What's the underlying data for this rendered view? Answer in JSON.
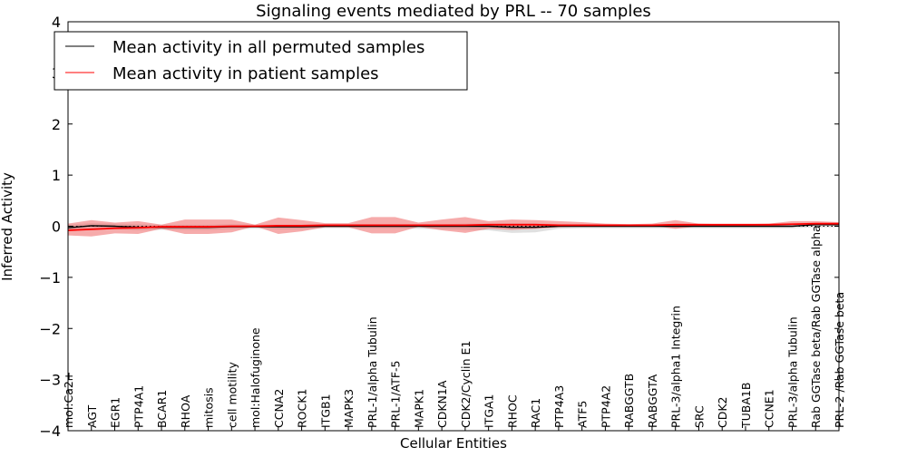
{
  "chart_data": {
    "type": "line",
    "title": "Signaling events mediated by PRL -- 70 samples",
    "xlabel": "Cellular Entities",
    "ylabel": "Inferred Activity",
    "ylim": [
      -4,
      4
    ],
    "yticks": [
      "4",
      "3",
      "2",
      "1",
      "0",
      "−1",
      "−2",
      "−3",
      "−4"
    ],
    "ytick_values": [
      4,
      3,
      2,
      1,
      0,
      -1,
      -2,
      -3,
      -4
    ],
    "legend_position": "top-left",
    "categories": [
      "mol:Ca2+",
      "AGT",
      "EGR1",
      "PTP4A1",
      "BCAR1",
      "RHOA",
      "mitosis",
      "cell motility",
      "mol:Halofuginone",
      "CCNA2",
      "ROCK1",
      "ITGB1",
      "MAPK3",
      "PRL-1/alpha Tubulin",
      "PRL-1/ATF-5",
      "MAPK1",
      "CDKN1A",
      "CDK2/Cyclin E1",
      "ITGA1",
      "RHOC",
      "RAC1",
      "PTP4A3",
      "ATF5",
      "PTP4A2",
      "RABGGTB",
      "RABGGTA",
      "PRL-3/alpha1 Integrin",
      "SRC",
      "CDK2",
      "TUBA1B",
      "CCNE1",
      "PRL-3/alpha Tubulin",
      "Rab GGTase beta/Rab GGTase alpha",
      "PRL-2 /Rab GGTase beta"
    ],
    "series": [
      {
        "name": "Mean activity in all permuted samples",
        "color": "#000000",
        "values": [
          -0.03,
          0.01,
          0,
          -0.02,
          -0.02,
          -0.02,
          -0.02,
          -0.01,
          -0.01,
          -0.01,
          -0.01,
          0,
          0,
          0,
          0,
          0,
          0,
          0,
          0,
          -0.02,
          -0.02,
          0,
          0,
          0,
          0,
          0,
          0,
          0,
          0,
          0,
          0,
          0,
          0.03,
          0.03
        ],
        "upper": [
          0.03,
          0.06,
          0.05,
          0.04,
          0.03,
          0.03,
          0.03,
          0.04,
          0.03,
          0.03,
          0.03,
          0.04,
          0.04,
          0.04,
          0.04,
          0.04,
          0.04,
          0.05,
          0.05,
          0.06,
          0.06,
          0.04,
          0.03,
          0.03,
          0.03,
          0.03,
          0.03,
          0.03,
          0.03,
          0.03,
          0.03,
          0.04,
          0.06,
          0.06
        ],
        "lower": [
          -0.09,
          -0.05,
          -0.05,
          -0.08,
          -0.07,
          -0.07,
          -0.07,
          -0.06,
          -0.05,
          -0.06,
          -0.06,
          -0.04,
          -0.04,
          -0.04,
          -0.04,
          -0.05,
          -0.06,
          -0.07,
          -0.08,
          -0.13,
          -0.12,
          -0.05,
          -0.04,
          -0.04,
          -0.04,
          -0.04,
          -0.04,
          -0.04,
          -0.04,
          -0.04,
          -0.04,
          -0.04,
          -0.02,
          -0.02
        ]
      },
      {
        "name": "Mean activity in patient samples",
        "color": "#ff0000",
        "values": [
          -0.08,
          -0.06,
          -0.04,
          -0.03,
          -0.01,
          -0.01,
          -0.01,
          0,
          0,
          0.01,
          0.01,
          0.02,
          0.02,
          0.02,
          0.02,
          0.02,
          0.02,
          0.02,
          0.03,
          0.03,
          0.03,
          0.02,
          0.02,
          0.02,
          0.02,
          0.02,
          0.03,
          0.03,
          0.03,
          0.03,
          0.03,
          0.04,
          0.05,
          0.05
        ],
        "upper": [
          0.05,
          0.12,
          0.07,
          0.1,
          0.03,
          0.13,
          0.13,
          0.13,
          0.03,
          0.17,
          0.12,
          0.06,
          0.06,
          0.18,
          0.18,
          0.07,
          0.13,
          0.18,
          0.1,
          0.13,
          0.12,
          0.1,
          0.08,
          0.05,
          0.04,
          0.05,
          0.12,
          0.05,
          0.04,
          0.04,
          0.05,
          0.1,
          0.1,
          0.08
        ],
        "lower": [
          -0.18,
          -0.2,
          -0.14,
          -0.15,
          -0.05,
          -0.15,
          -0.15,
          -0.12,
          0,
          -0.15,
          -0.1,
          -0.02,
          -0.02,
          -0.14,
          -0.14,
          -0.01,
          -0.08,
          -0.13,
          -0.05,
          -0.07,
          -0.05,
          -0.02,
          0,
          0.01,
          0.01,
          0.01,
          -0.05,
          0,
          0.01,
          0.01,
          0.02,
          0.02,
          0.02,
          0.03
        ]
      }
    ]
  }
}
